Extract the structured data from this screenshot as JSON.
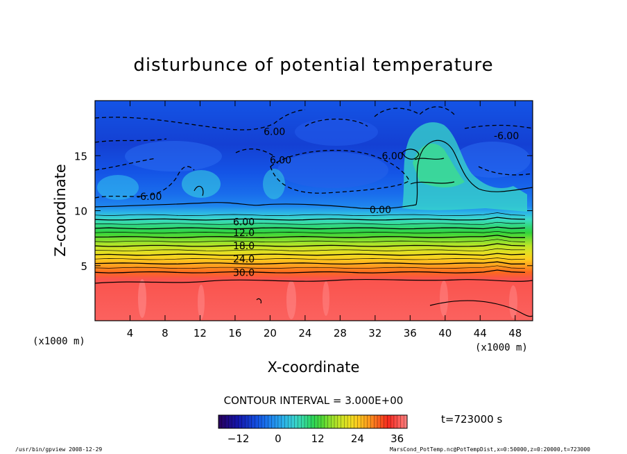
{
  "chart_data": {
    "type": "heatmap",
    "title": "disturbunce of potential temperature",
    "xlabel": "X-coordinate",
    "ylabel": "Z-coordinate",
    "x_unit_left": "(x1000 m)",
    "x_unit_right": "(x1000 m)",
    "xlim": [
      0,
      50
    ],
    "ylim": [
      0,
      20
    ],
    "xticks": [
      4,
      8,
      12,
      16,
      20,
      24,
      28,
      32,
      36,
      40,
      44,
      48
    ],
    "xtick_labels": [
      "4",
      "8",
      "12",
      "16",
      "20",
      "24",
      "28",
      "32",
      "36",
      "40",
      "44",
      "48"
    ],
    "yticks": [
      5,
      10,
      15
    ],
    "ytick_labels": [
      "5",
      "10",
      "15"
    ],
    "contour_interval": "CONTOUR INTERVAL = 3.000E+00",
    "time_label": "t=723000 s",
    "contour_labels": [
      {
        "text": "6.00",
        "x": 20.5,
        "z": 17.2
      },
      {
        "text": "6.00",
        "x": 21.2,
        "z": 14.6
      },
      {
        "text": "6.00",
        "x": 34.0,
        "z": 15.0
      },
      {
        "text": "-6.00",
        "x": 47.0,
        "z": 16.8
      },
      {
        "text": "-6.00",
        "x": 6.2,
        "z": 11.3
      },
      {
        "text": "0.00",
        "x": 32.6,
        "z": 10.1
      },
      {
        "text": "6.00",
        "x": 17.0,
        "z": 9.0
      },
      {
        "text": "12.0",
        "x": 17.0,
        "z": 8.0
      },
      {
        "text": "18.0",
        "x": 17.0,
        "z": 6.8
      },
      {
        "text": "24.0",
        "x": 17.0,
        "z": 5.6
      },
      {
        "text": "30.0",
        "x": 17.0,
        "z": 4.4
      }
    ],
    "value_by_height": [
      {
        "z": 0,
        "v": 37
      },
      {
        "z": 3.8,
        "v": 36
      },
      {
        "z": 4.4,
        "v": 30
      },
      {
        "z": 5.0,
        "v": 27
      },
      {
        "z": 5.6,
        "v": 24
      },
      {
        "z": 6.2,
        "v": 21
      },
      {
        "z": 6.8,
        "v": 18
      },
      {
        "z": 7.4,
        "v": 15
      },
      {
        "z": 8.0,
        "v": 12
      },
      {
        "z": 8.6,
        "v": 9
      },
      {
        "z": 9.2,
        "v": 6
      },
      {
        "z": 9.8,
        "v": 2
      },
      {
        "z": 10.4,
        "v": -2
      },
      {
        "z": 11.5,
        "v": -4
      },
      {
        "z": 13.5,
        "v": -6
      },
      {
        "z": 16.0,
        "v": -8
      },
      {
        "z": 18.0,
        "v": -7
      },
      {
        "z": 20.0,
        "v": -6
      }
    ],
    "colorbar": {
      "min": -18,
      "max": 39,
      "ticks": [
        -12,
        0,
        12,
        24,
        36
      ],
      "tick_labels": [
        "−12",
        "0",
        "12",
        "24",
        "36"
      ]
    }
  },
  "footer": {
    "left": "/usr/bin/gpview  2008-12-29",
    "right": "MarsCond_PotTemp.nc@PotTempDist,x=0:50000,z=0:20000,t=723000"
  }
}
